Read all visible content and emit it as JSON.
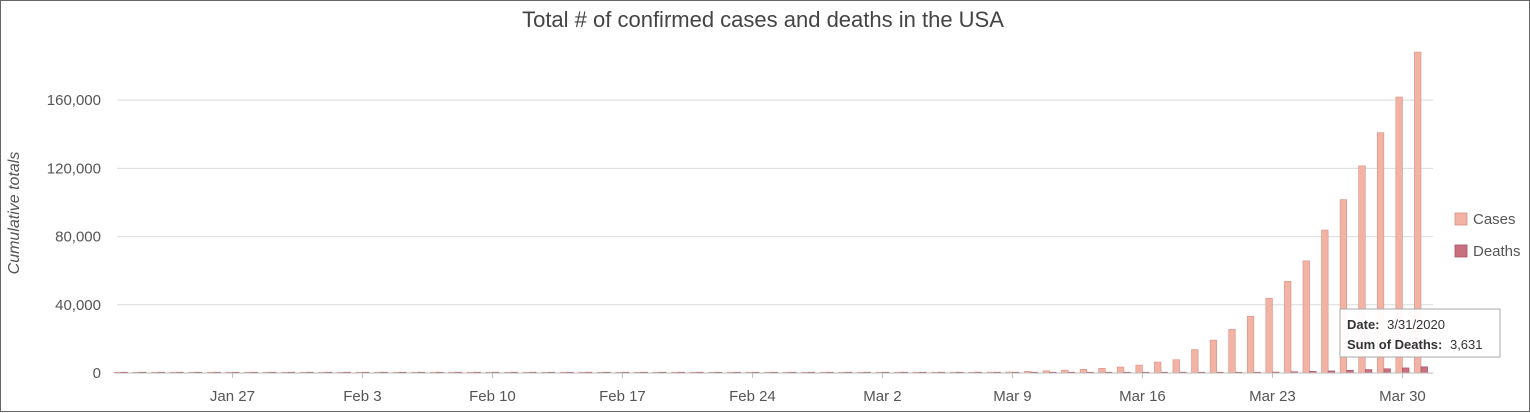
{
  "chart_data": {
    "type": "bar",
    "title": "Total # of confirmed cases and deaths in the USA",
    "xlabel": "",
    "ylabel": "Cumulative totals",
    "ylim": [
      0,
      190000
    ],
    "yticks": [
      0,
      40000,
      80000,
      120000,
      160000
    ],
    "ytick_labels": [
      "0",
      "40,000",
      "80,000",
      "120,000",
      "160,000"
    ],
    "xtick_labels": [
      "Jan 27",
      "Feb 3",
      "Feb 10",
      "Feb 17",
      "Feb 24",
      "Mar 2",
      "Mar 9",
      "Mar 16",
      "Mar 23",
      "Mar 30"
    ],
    "xtick_index": [
      6,
      13,
      20,
      27,
      34,
      41,
      48,
      55,
      62,
      69
    ],
    "grid": true,
    "legend_position": "right",
    "categories": [
      "1/21",
      "1/22",
      "1/23",
      "1/24",
      "1/25",
      "1/26",
      "1/27",
      "1/28",
      "1/29",
      "1/30",
      "1/31",
      "2/1",
      "2/2",
      "2/3",
      "2/4",
      "2/5",
      "2/6",
      "2/7",
      "2/8",
      "2/9",
      "2/10",
      "2/11",
      "2/12",
      "2/13",
      "2/14",
      "2/15",
      "2/16",
      "2/17",
      "2/18",
      "2/19",
      "2/20",
      "2/21",
      "2/22",
      "2/23",
      "2/24",
      "2/25",
      "2/26",
      "2/27",
      "2/28",
      "2/29",
      "3/1",
      "3/2",
      "3/3",
      "3/4",
      "3/5",
      "3/6",
      "3/7",
      "3/8",
      "3/9",
      "3/10",
      "3/11",
      "3/12",
      "3/13",
      "3/14",
      "3/15",
      "3/16",
      "3/17",
      "3/18",
      "3/19",
      "3/20",
      "3/21",
      "3/22",
      "3/23",
      "3/24",
      "3/25",
      "3/26",
      "3/27",
      "3/28",
      "3/29",
      "3/30",
      "3/31"
    ],
    "series": [
      {
        "name": "Cases",
        "color": "#f2b3a5",
        "stroke": "#d98f80",
        "values": [
          1,
          1,
          1,
          2,
          2,
          5,
          5,
          5,
          5,
          5,
          6,
          8,
          8,
          11,
          11,
          12,
          12,
          12,
          12,
          12,
          13,
          13,
          14,
          14,
          14,
          14,
          14,
          14,
          14,
          14,
          14,
          15,
          15,
          15,
          51,
          51,
          57,
          58,
          60,
          68,
          74,
          98,
          118,
          149,
          217,
          262,
          402,
          518,
          583,
          959,
          1281,
          1663,
          2179,
          2726,
          3499,
          4632,
          6421,
          7783,
          13747,
          19273,
          25600,
          33276,
          43847,
          53740,
          65778,
          83836,
          101657,
          121465,
          140909,
          161831,
          188172
        ]
      },
      {
        "name": "Deaths",
        "color": "#c8707f",
        "stroke": "#a65061",
        "values": [
          0,
          0,
          0,
          0,
          0,
          0,
          0,
          0,
          0,
          0,
          0,
          0,
          0,
          0,
          0,
          0,
          0,
          0,
          0,
          0,
          0,
          0,
          0,
          0,
          0,
          0,
          0,
          0,
          0,
          0,
          0,
          0,
          0,
          0,
          0,
          0,
          0,
          0,
          0,
          1,
          1,
          6,
          7,
          11,
          12,
          14,
          17,
          21,
          22,
          28,
          36,
          40,
          47,
          54,
          63,
          85,
          108,
          118,
          200,
          244,
          307,
          427,
          552,
          706,
          942,
          1209,
          1581,
          2026,
          2467,
          2978,
          3631
        ]
      }
    ],
    "tooltip": {
      "date_label": "Date:",
      "date_value": "3/31/2020",
      "sum_label": "Sum of Deaths:",
      "sum_value": "3,631"
    }
  }
}
